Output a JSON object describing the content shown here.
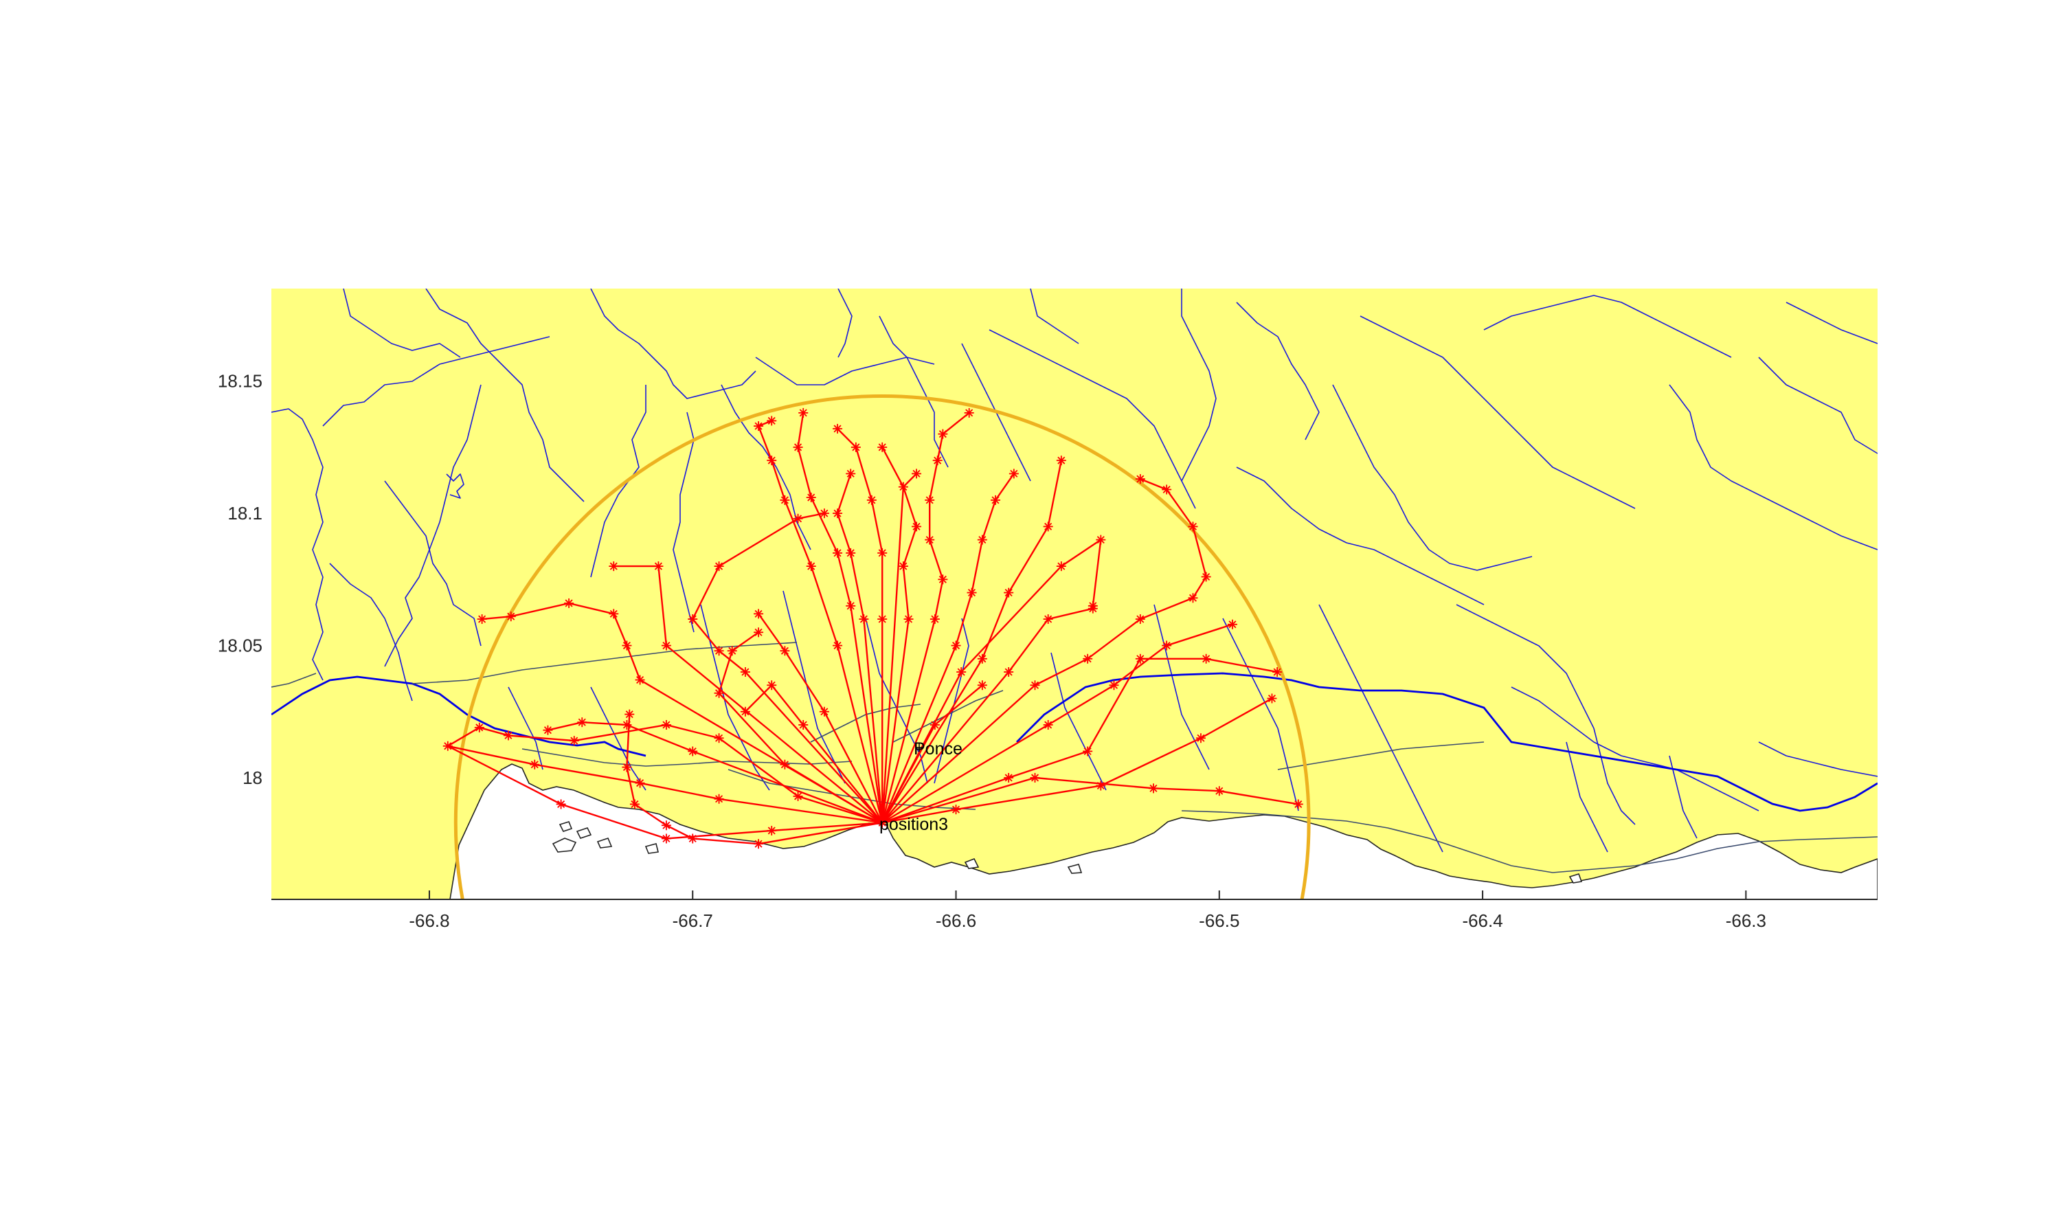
{
  "map": {
    "extent": {
      "lon_min": -66.86,
      "lon_max": -66.25,
      "lat_min": 17.954,
      "lat_max": 18.185
    },
    "xticks": [
      {
        "value": -66.8,
        "label": "-66.8"
      },
      {
        "value": -66.7,
        "label": "-66.7"
      },
      {
        "value": -66.6,
        "label": "-66.6"
      },
      {
        "value": -66.5,
        "label": "-66.5"
      },
      {
        "value": -66.4,
        "label": "-66.4"
      },
      {
        "value": -66.3,
        "label": "-66.3"
      }
    ],
    "yticks": [
      {
        "value": 18.0,
        "label": "18"
      },
      {
        "value": 18.05,
        "label": "18.05"
      },
      {
        "value": 18.1,
        "label": "18.1"
      },
      {
        "value": 18.15,
        "label": "18.15"
      }
    ],
    "colors": {
      "land": "#ffff80",
      "sea": "#ffffff",
      "rivers": "#0000ff",
      "routes": "#ff0000",
      "range_circle": "#edb120",
      "axis": "#262626"
    },
    "labels": {
      "city": "Ponce",
      "position": "position3"
    },
    "range_circle": {
      "center": [
        -66.628,
        17.983
      ],
      "radius_deg": 0.162
    },
    "hub": [
      -66.628,
      17.983
    ],
    "routes": [
      [
        [
          -66.628,
          17.983
        ],
        [
          -66.66,
          17.993
        ],
        [
          -66.69,
          18.015
        ],
        [
          -66.71,
          18.02
        ],
        [
          -66.745,
          18.014
        ],
        [
          -66.77,
          18.016
        ],
        [
          -66.781,
          18.019
        ],
        [
          -66.793,
          18.012
        ],
        [
          -66.76,
          18.005
        ],
        [
          -66.72,
          17.998
        ],
        [
          -66.69,
          17.992
        ],
        [
          -66.628,
          17.983
        ]
      ],
      [
        [
          -66.628,
          17.983
        ],
        [
          -66.67,
          17.98
        ],
        [
          -66.71,
          17.977
        ],
        [
          -66.75,
          17.99
        ],
        [
          -66.793,
          18.012
        ]
      ],
      [
        [
          -66.628,
          17.983
        ],
        [
          -66.675,
          17.975
        ],
        [
          -66.7,
          17.977
        ],
        [
          -66.71,
          17.982
        ],
        [
          -66.722,
          17.99
        ],
        [
          -66.725,
          18.004
        ],
        [
          -66.724,
          18.024
        ]
      ],
      [
        [
          -66.628,
          17.983
        ],
        [
          -66.7,
          18.01
        ],
        [
          -66.725,
          18.02
        ],
        [
          -66.742,
          18.021
        ],
        [
          -66.755,
          18.018
        ]
      ],
      [
        [
          -66.628,
          17.983
        ],
        [
          -66.72,
          18.037
        ],
        [
          -66.725,
          18.05
        ],
        [
          -66.73,
          18.062
        ],
        [
          -66.747,
          18.066
        ],
        [
          -66.769,
          18.061
        ],
        [
          -66.78,
          18.06
        ]
      ],
      [
        [
          -66.628,
          17.983
        ],
        [
          -66.71,
          18.05
        ],
        [
          -66.713,
          18.08
        ],
        [
          -66.73,
          18.08
        ]
      ],
      [
        [
          -66.628,
          17.983
        ],
        [
          -66.68,
          18.04
        ],
        [
          -66.69,
          18.048
        ],
        [
          -66.7,
          18.06
        ],
        [
          -66.69,
          18.08
        ],
        [
          -66.66,
          18.098
        ],
        [
          -66.65,
          18.1
        ]
      ],
      [
        [
          -66.628,
          17.983
        ],
        [
          -66.665,
          18.005
        ],
        [
          -66.69,
          18.032
        ],
        [
          -66.685,
          18.048
        ],
        [
          -66.675,
          18.055
        ]
      ],
      [
        [
          -66.628,
          17.983
        ],
        [
          -66.658,
          18.02
        ],
        [
          -66.67,
          18.035
        ],
        [
          -66.68,
          18.025
        ]
      ],
      [
        [
          -66.628,
          17.983
        ],
        [
          -66.65,
          18.025
        ],
        [
          -66.665,
          18.048
        ],
        [
          -66.675,
          18.062
        ]
      ],
      [
        [
          -66.628,
          17.983
        ],
        [
          -66.645,
          18.05
        ],
        [
          -66.655,
          18.08
        ],
        [
          -66.665,
          18.105
        ],
        [
          -66.67,
          18.12
        ],
        [
          -66.675,
          18.133
        ],
        [
          -66.67,
          18.135
        ]
      ],
      [
        [
          -66.628,
          17.983
        ],
        [
          -66.64,
          18.065
        ],
        [
          -66.645,
          18.085
        ],
        [
          -66.655,
          18.106
        ],
        [
          -66.66,
          18.125
        ],
        [
          -66.658,
          18.138
        ]
      ],
      [
        [
          -66.628,
          17.983
        ],
        [
          -66.635,
          18.06
        ],
        [
          -66.64,
          18.085
        ],
        [
          -66.645,
          18.1
        ],
        [
          -66.64,
          18.115
        ]
      ],
      [
        [
          -66.628,
          17.983
        ],
        [
          -66.628,
          18.06
        ],
        [
          -66.628,
          18.085
        ],
        [
          -66.632,
          18.105
        ],
        [
          -66.638,
          18.125
        ],
        [
          -66.645,
          18.132
        ]
      ],
      [
        [
          -66.628,
          17.983
        ],
        [
          -66.618,
          18.06
        ],
        [
          -66.62,
          18.08
        ],
        [
          -66.615,
          18.095
        ],
        [
          -66.62,
          18.11
        ],
        [
          -66.628,
          18.125
        ]
      ],
      [
        [
          -66.628,
          17.983
        ],
        [
          -66.62,
          18.11
        ],
        [
          -66.615,
          18.115
        ]
      ],
      [
        [
          -66.628,
          17.983
        ],
        [
          -66.608,
          18.06
        ],
        [
          -66.605,
          18.075
        ],
        [
          -66.61,
          18.09
        ],
        [
          -66.61,
          18.105
        ],
        [
          -66.607,
          18.12
        ],
        [
          -66.605,
          18.13
        ],
        [
          -66.595,
          18.138
        ]
      ],
      [
        [
          -66.628,
          17.983
        ],
        [
          -66.6,
          18.05
        ],
        [
          -66.594,
          18.07
        ],
        [
          -66.59,
          18.09
        ],
        [
          -66.585,
          18.105
        ],
        [
          -66.578,
          18.115
        ]
      ],
      [
        [
          -66.628,
          17.983
        ],
        [
          -66.59,
          18.045
        ],
        [
          -66.58,
          18.07
        ],
        [
          -66.565,
          18.095
        ],
        [
          -66.56,
          18.12
        ]
      ],
      [
        [
          -66.628,
          17.983
        ],
        [
          -66.58,
          18.04
        ],
        [
          -66.565,
          18.06
        ],
        [
          -66.548,
          18.064
        ]
      ],
      [
        [
          -66.628,
          17.983
        ],
        [
          -66.57,
          18.035
        ],
        [
          -66.55,
          18.045
        ],
        [
          -66.53,
          18.06
        ],
        [
          -66.51,
          18.068
        ],
        [
          -66.505,
          18.076
        ],
        [
          -66.51,
          18.095
        ],
        [
          -66.52,
          18.109
        ],
        [
          -66.53,
          18.113
        ]
      ],
      [
        [
          -66.628,
          17.983
        ],
        [
          -66.565,
          18.02
        ],
        [
          -66.54,
          18.035
        ],
        [
          -66.52,
          18.05
        ],
        [
          -66.495,
          18.058
        ]
      ],
      [
        [
          -66.628,
          17.983
        ],
        [
          -66.58,
          18.0
        ],
        [
          -66.55,
          18.01
        ],
        [
          -66.53,
          18.045
        ],
        [
          -66.505,
          18.045
        ],
        [
          -66.478,
          18.04
        ]
      ],
      [
        [
          -66.628,
          17.983
        ],
        [
          -66.57,
          18.0
        ],
        [
          -66.525,
          17.996
        ],
        [
          -66.5,
          17.995
        ],
        [
          -66.47,
          17.99
        ]
      ],
      [
        [
          -66.628,
          17.983
        ],
        [
          -66.6,
          17.988
        ],
        [
          -66.545,
          17.997
        ],
        [
          -66.507,
          18.015
        ],
        [
          -66.48,
          18.03
        ]
      ],
      [
        [
          -66.628,
          17.983
        ],
        [
          -66.598,
          18.04
        ],
        [
          -66.56,
          18.08
        ],
        [
          -66.545,
          18.09
        ],
        [
          -66.548,
          18.065
        ]
      ],
      [
        [
          -66.628,
          17.983
        ],
        [
          -66.608,
          18.02
        ],
        [
          -66.59,
          18.035
        ]
      ]
    ]
  }
}
